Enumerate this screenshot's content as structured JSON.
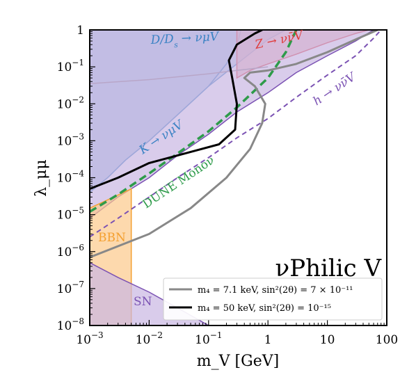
{
  "chart_data": {
    "type": "area",
    "title": "νPhilic V",
    "xlabel": "m_V [GeV]",
    "ylabel": "λ_μμ",
    "x_scale": "log",
    "y_scale": "log",
    "xlim": [
      0.001,
      100
    ],
    "ylim": [
      1e-08,
      1
    ],
    "grid": false,
    "x_ticks": [
      {
        "value": 0.001,
        "base": "10",
        "exp": "−3"
      },
      {
        "value": 0.01,
        "base": "10",
        "exp": "−2"
      },
      {
        "value": 0.1,
        "base": "10",
        "exp": "−1"
      },
      {
        "value": 1,
        "base": "1",
        "exp": ""
      },
      {
        "value": 10,
        "base": "10",
        "exp": ""
      },
      {
        "value": 100,
        "base": "100",
        "exp": ""
      }
    ],
    "y_ticks": [
      {
        "value": 1,
        "base": "1",
        "exp": ""
      },
      {
        "value": 0.1,
        "base": "10",
        "exp": "−1"
      },
      {
        "value": 0.01,
        "base": "10",
        "exp": "−2"
      },
      {
        "value": 0.001,
        "base": "10",
        "exp": "−3"
      },
      {
        "value": 0.0001,
        "base": "10",
        "exp": "−4"
      },
      {
        "value": 1e-05,
        "base": "10",
        "exp": "−5"
      },
      {
        "value": 1e-06,
        "base": "10",
        "exp": "−6"
      },
      {
        "value": 1e-07,
        "base": "10",
        "exp": "−7"
      },
      {
        "value": 1e-08,
        "base": "10",
        "exp": "−8"
      }
    ],
    "regions": [
      {
        "label": "D/Ds → νμV",
        "color": "#3b82c4",
        "fill": "#a9c8e4",
        "points": [
          [
            0.001,
            4e-05
          ],
          [
            0.002,
            0.0001
          ],
          [
            0.004,
            0.0003
          ],
          [
            0.01,
            0.001
          ],
          [
            0.03,
            0.005
          ],
          [
            0.1,
            0.03
          ],
          [
            0.3,
            0.12
          ],
          [
            1,
            0.55
          ],
          [
            2,
            1
          ],
          [
            0.001,
            1
          ]
        ]
      },
      {
        "label": "K → νμV",
        "color": "#3b82c4",
        "fill": "#a9c8e4",
        "points": [
          [
            0.001,
            4e-05
          ],
          [
            0.002,
            0.0001
          ],
          [
            0.004,
            0.0003
          ],
          [
            0.01,
            0.001
          ],
          [
            0.03,
            0.005
          ],
          [
            0.1,
            0.03
          ],
          [
            0.2,
            0.12
          ],
          [
            0.3,
            0.35
          ],
          [
            0.35,
            1
          ],
          [
            0.001,
            1
          ]
        ]
      },
      {
        "label": "Z → νν̄V",
        "color": "#e03a3a",
        "fill": "#f0a8a8",
        "points": [
          [
            0.3,
            0.05
          ],
          [
            0.5,
            0.08
          ],
          [
            1,
            0.12
          ],
          [
            3,
            0.22
          ],
          [
            10,
            0.45
          ],
          [
            30,
            0.8
          ],
          [
            50,
            1
          ],
          [
            0.3,
            1
          ]
        ]
      },
      {
        "label": "h → νν̄V",
        "color": "#7b52b3",
        "fill": "#c9b6e2",
        "points": [
          [
            0.001,
            8e-06
          ],
          [
            0.003,
            3e-05
          ],
          [
            0.01,
            0.0001
          ],
          [
            0.03,
            0.0004
          ],
          [
            0.1,
            0.0015
          ],
          [
            0.3,
            0.006
          ],
          [
            1,
            0.02
          ],
          [
            3,
            0.07
          ],
          [
            10,
            0.2
          ],
          [
            30,
            0.5
          ],
          [
            60,
            1
          ],
          [
            0.001,
            1
          ]
        ]
      },
      {
        "label": "BBN",
        "color": "#f4a030",
        "fill": "#fcc98a",
        "points": [
          [
            0.001,
            1e-08
          ],
          [
            0.005,
            1e-08
          ],
          [
            0.005,
            5e-05
          ],
          [
            0.001,
            1.5e-05
          ]
        ]
      },
      {
        "label": "SN",
        "color": "#7b52b3",
        "fill": "#c9b6e2",
        "points": [
          [
            0.001,
            5e-07
          ],
          [
            0.003,
            2e-07
          ],
          [
            0.01,
            8e-08
          ],
          [
            0.03,
            3e-08
          ],
          [
            0.1,
            1e-08
          ],
          [
            0.001,
            1e-08
          ]
        ]
      }
    ],
    "lines": [
      {
        "label": "DUNE Monoν",
        "color": "#2e9b4a",
        "style": "dashed",
        "points": [
          [
            0.001,
            1.2e-05
          ],
          [
            0.003,
            3.5e-05
          ],
          [
            0.01,
            0.00013
          ],
          [
            0.03,
            0.00045
          ],
          [
            0.1,
            0.0018
          ],
          [
            0.3,
            0.008
          ],
          [
            1,
            0.05
          ],
          [
            2,
            0.25
          ],
          [
            3,
            1
          ]
        ]
      },
      {
        "label": "h → νν̄V",
        "color": "#7b52b3",
        "style": "dashed",
        "points": [
          [
            0.001,
            2.5e-06
          ],
          [
            0.003,
            8e-06
          ],
          [
            0.01,
            3e-05
          ],
          [
            0.03,
            0.0001
          ],
          [
            0.1,
            0.00035
          ],
          [
            0.3,
            0.0012
          ],
          [
            1,
            0.004
          ],
          [
            3,
            0.015
          ],
          [
            10,
            0.06
          ],
          [
            30,
            0.2
          ],
          [
            60,
            0.6
          ],
          [
            80,
            1
          ]
        ]
      },
      {
        "label": "D/Ds (boundary)",
        "color": "#b8a6c8",
        "style": "solid",
        "points": [
          [
            0.001,
            0.035
          ],
          [
            0.01,
            0.045
          ],
          [
            0.1,
            0.065
          ],
          [
            0.3,
            0.08
          ],
          [
            1,
            0.1
          ]
        ]
      }
    ],
    "legend_position": "bottom-right",
    "series": [
      {
        "name": "m₄ = 7.1 keV, sin²(2θ) = 7 × 10⁻¹¹",
        "color": "#888888",
        "points": [
          [
            0.001,
            7e-07
          ],
          [
            0.01,
            3e-06
          ],
          [
            0.05,
            1.5e-05
          ],
          [
            0.2,
            0.0001
          ],
          [
            0.5,
            0.0006
          ],
          [
            0.8,
            0.003
          ],
          [
            0.9,
            0.01
          ],
          [
            0.6,
            0.03
          ],
          [
            0.4,
            0.05
          ],
          [
            0.5,
            0.07
          ],
          [
            1,
            0.08
          ],
          [
            3,
            0.12
          ],
          [
            10,
            0.25
          ],
          [
            30,
            0.55
          ],
          [
            70,
            1
          ]
        ]
      },
      {
        "name": "m₄ = 50 keV, sin²(2θ) = 10⁻¹⁵",
        "color": "#000000",
        "points": [
          [
            0.001,
            5e-05
          ],
          [
            0.003,
            0.0001
          ],
          [
            0.01,
            0.00025
          ],
          [
            0.05,
            0.0005
          ],
          [
            0.15,
            0.0008
          ],
          [
            0.28,
            0.002
          ],
          [
            0.3,
            0.01
          ],
          [
            0.25,
            0.05
          ],
          [
            0.22,
            0.15
          ],
          [
            0.3,
            0.4
          ],
          [
            0.6,
            0.8
          ],
          [
            0.8,
            1
          ]
        ]
      }
    ],
    "region_labels": {
      "d_ds": {
        "lhs": "D/D",
        "sub": "s",
        "rhs": " → νμV"
      },
      "k": "K → νμV",
      "z": "Z → νν̄V",
      "h": "h → νν̄V",
      "dune": "DUNE Monoν",
      "bbn": "BBN",
      "sn": "SN"
    }
  }
}
